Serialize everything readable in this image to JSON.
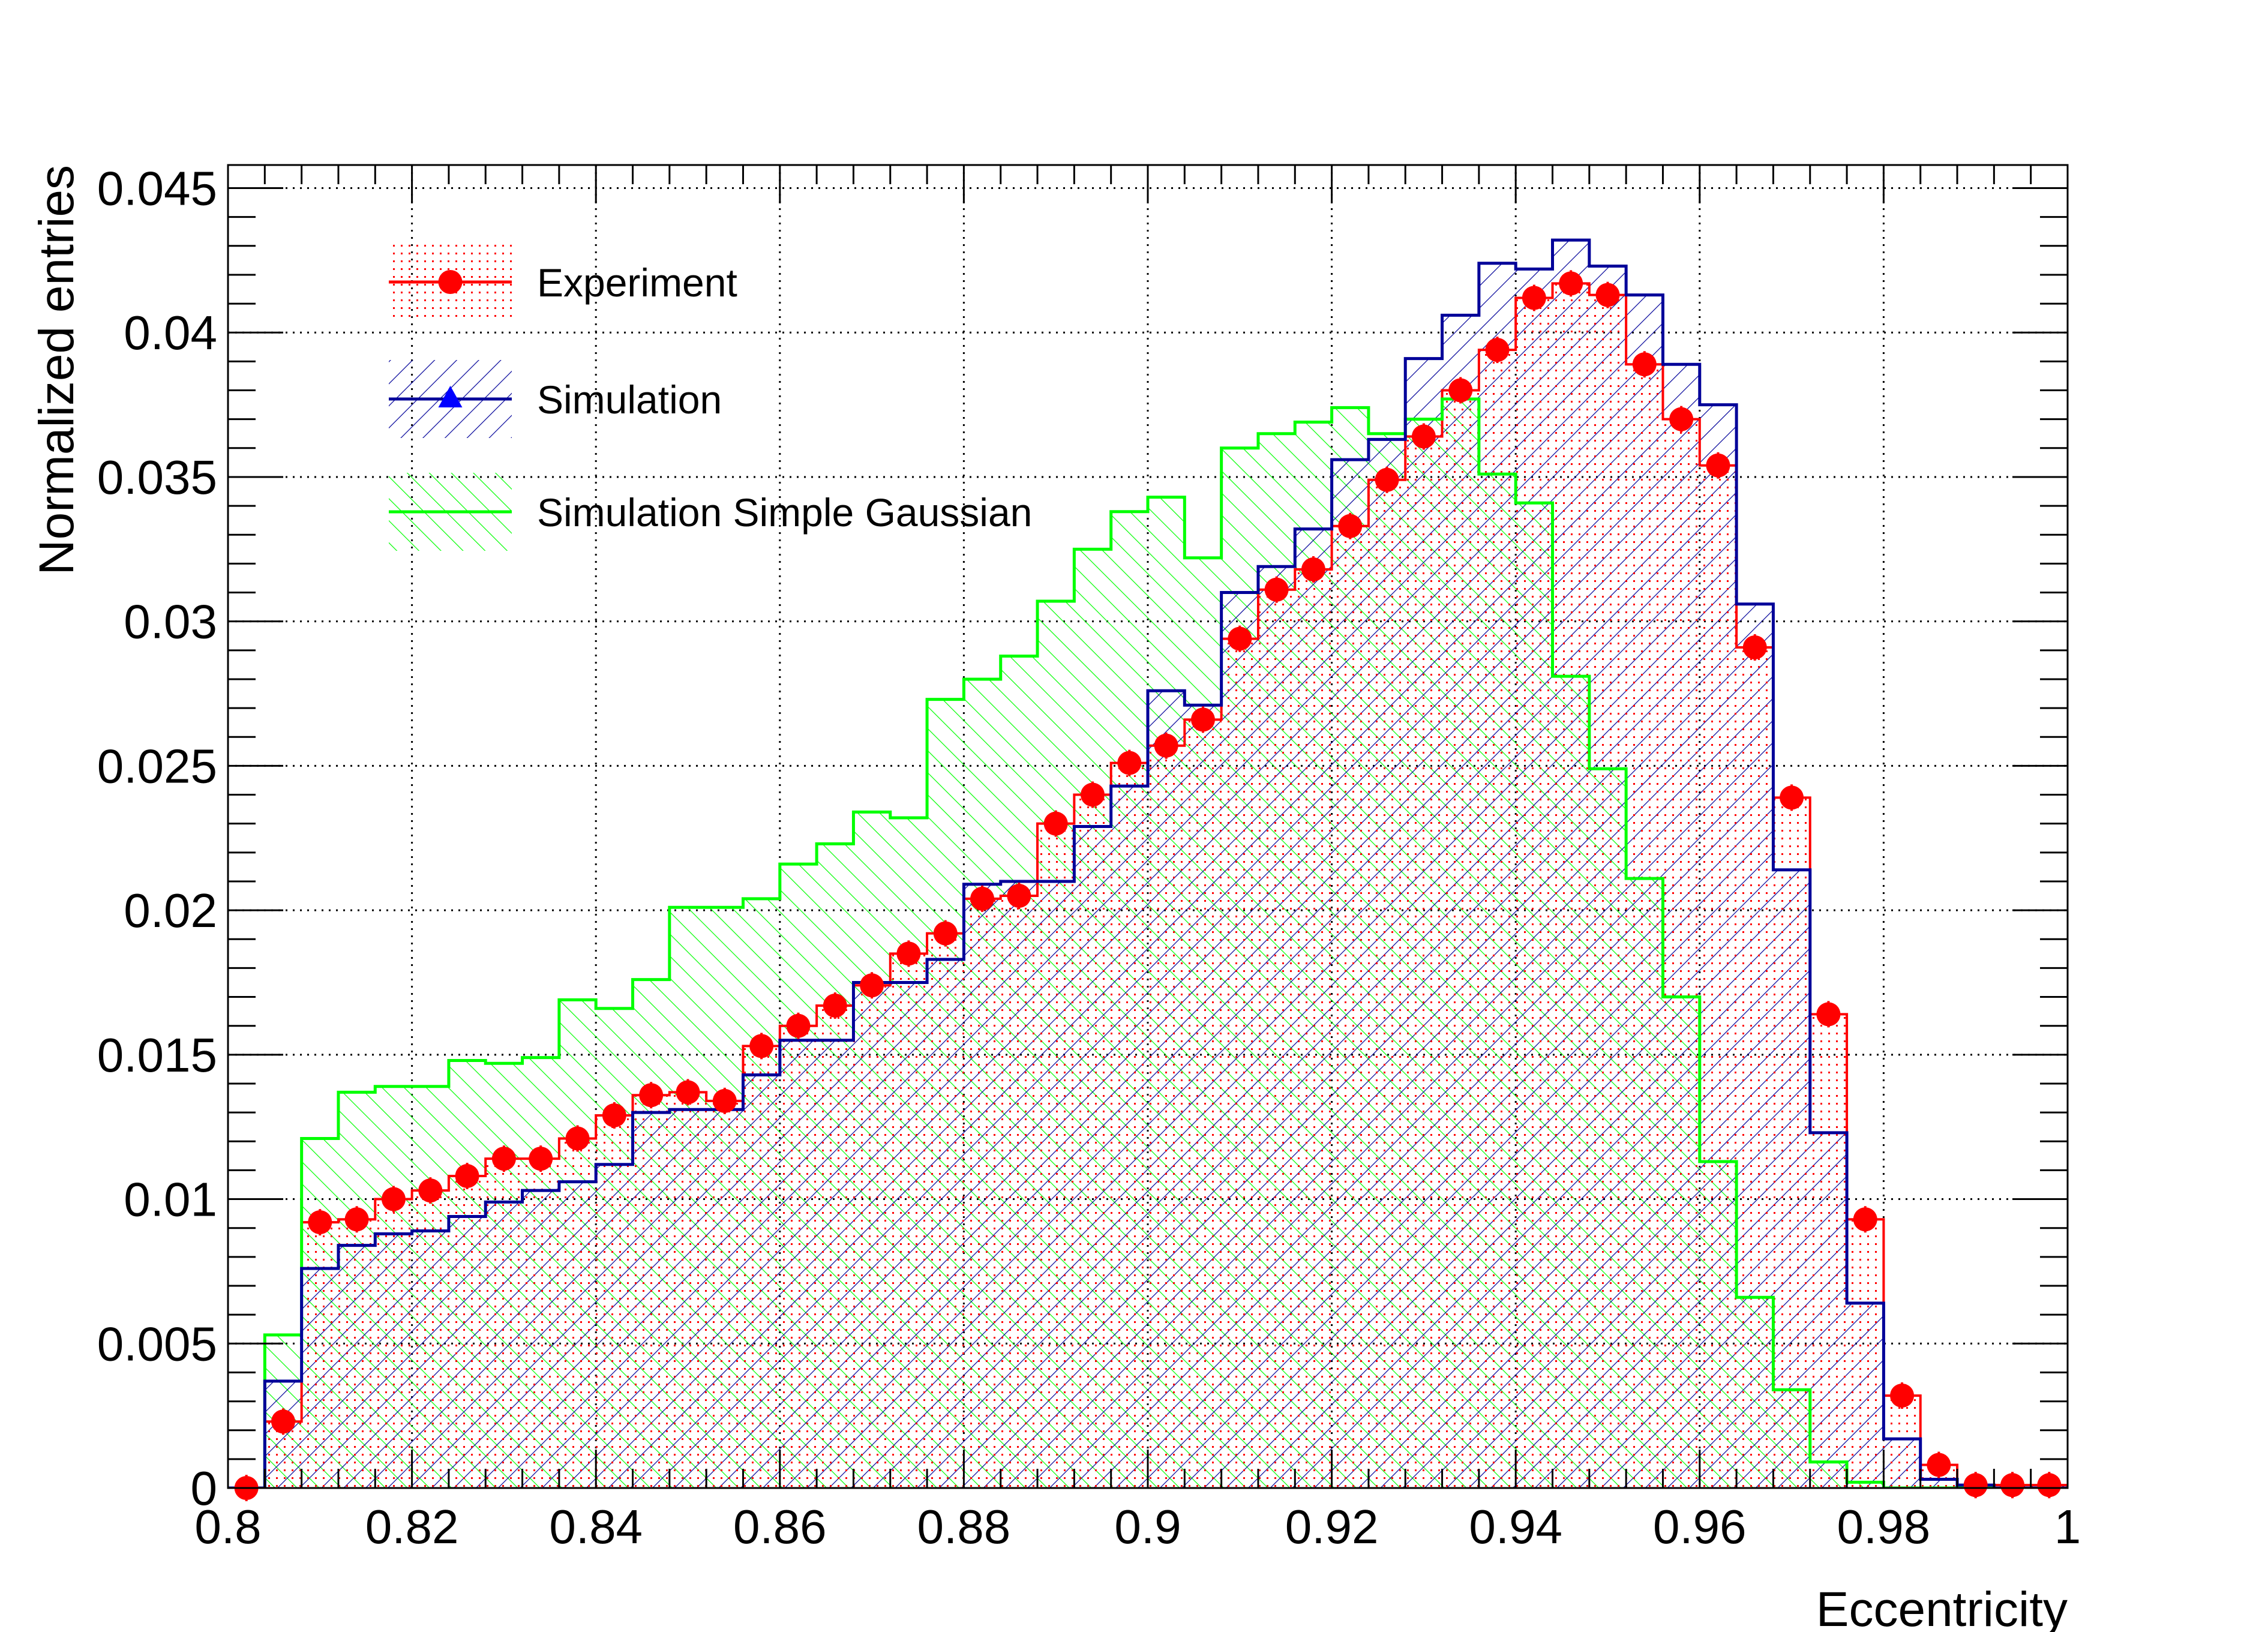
{
  "colors": {
    "experiment": "#ff0000",
    "simulation": "#000099",
    "simulation_marker": "#0000ff",
    "gaussian": "#00ff00",
    "grid": "#000000",
    "background": "#ffffff"
  },
  "chart_data": {
    "type": "histogram",
    "xlabel": "Eccentricity",
    "ylabel": "Normalized entries",
    "xlim": [
      0.8,
      1.0
    ],
    "ylim": [
      0,
      0.0458
    ],
    "grid": true,
    "legend_position": "top-left",
    "x_ticks": [
      {
        "value": 0.8,
        "label": "0.8"
      },
      {
        "value": 0.82,
        "label": "0.82"
      },
      {
        "value": 0.84,
        "label": "0.84"
      },
      {
        "value": 0.86,
        "label": "0.86"
      },
      {
        "value": 0.88,
        "label": "0.88"
      },
      {
        "value": 0.9,
        "label": "0.9"
      },
      {
        "value": 0.92,
        "label": "0.92"
      },
      {
        "value": 0.94,
        "label": "0.94"
      },
      {
        "value": 0.96,
        "label": "0.96"
      },
      {
        "value": 0.98,
        "label": "0.98"
      },
      {
        "value": 1.0,
        "label": "1"
      }
    ],
    "y_ticks": [
      {
        "value": 0,
        "label": "0"
      },
      {
        "value": 0.005,
        "label": "0.005"
      },
      {
        "value": 0.01,
        "label": "0.01"
      },
      {
        "value": 0.015,
        "label": "0.015"
      },
      {
        "value": 0.02,
        "label": "0.02"
      },
      {
        "value": 0.025,
        "label": "0.025"
      },
      {
        "value": 0.03,
        "label": "0.03"
      },
      {
        "value": 0.035,
        "label": "0.035"
      },
      {
        "value": 0.04,
        "label": "0.04"
      },
      {
        "value": 0.045,
        "label": "0.045"
      }
    ],
    "bin_edges_range": [
      0.8,
      1.0
    ],
    "n_bins": 50,
    "series": [
      {
        "name": "Simulation Simple Gaussian",
        "style": "step-hatched",
        "values": [
          0,
          0.0053,
          0.0121,
          0.0137,
          0.0139,
          0.0139,
          0.0148,
          0.0147,
          0.0149,
          0.0169,
          0.0166,
          0.0176,
          0.0201,
          0.0201,
          0.0204,
          0.0216,
          0.0223,
          0.0234,
          0.0232,
          0.0273,
          0.028,
          0.0288,
          0.0307,
          0.0325,
          0.0338,
          0.0343,
          0.0322,
          0.036,
          0.0365,
          0.0369,
          0.0374,
          0.0365,
          0.037,
          0.0377,
          0.0351,
          0.0341,
          0.0281,
          0.0249,
          0.0211,
          0.017,
          0.0113,
          0.0066,
          0.0034,
          0.0009,
          0.0002,
          0,
          0,
          0,
          0,
          0
        ]
      },
      {
        "name": "Simulation",
        "style": "step-hatched",
        "values": [
          0,
          0.0037,
          0.0076,
          0.0084,
          0.0088,
          0.0089,
          0.0094,
          0.0099,
          0.0103,
          0.0106,
          0.0112,
          0.013,
          0.0131,
          0.0131,
          0.0143,
          0.0155,
          0.0155,
          0.0175,
          0.0175,
          0.0183,
          0.0209,
          0.021,
          0.021,
          0.0229,
          0.0243,
          0.0276,
          0.0271,
          0.031,
          0.0319,
          0.0332,
          0.0356,
          0.0363,
          0.0391,
          0.0406,
          0.0424,
          0.0422,
          0.0432,
          0.0423,
          0.0413,
          0.0389,
          0.0375,
          0.0306,
          0.0214,
          0.0123,
          0.0064,
          0.0017,
          0.0003,
          0.0001,
          0,
          0
        ]
      },
      {
        "name": "Experiment",
        "style": "markers",
        "values": [
          0,
          0.0023,
          0.0092,
          0.0093,
          0.01,
          0.0103,
          0.0108,
          0.0114,
          0.0114,
          0.0121,
          0.0129,
          0.0136,
          0.0137,
          0.0134,
          0.0153,
          0.016,
          0.0167,
          0.0174,
          0.0185,
          0.0192,
          0.0204,
          0.0205,
          0.023,
          0.024,
          0.0251,
          0.0257,
          0.0266,
          0.0294,
          0.0311,
          0.0318,
          0.0333,
          0.0349,
          0.0364,
          0.038,
          0.0394,
          0.0412,
          0.0417,
          0.0413,
          0.0389,
          0.037,
          0.0354,
          0.0291,
          0.0239,
          0.0164,
          0.0093,
          0.0032,
          0.0008,
          0.0001,
          0.0001,
          0.0001
        ]
      }
    ],
    "legend": [
      {
        "name": "Experiment"
      },
      {
        "name": "Simulation"
      },
      {
        "name": "Simulation Simple Gaussian"
      }
    ]
  }
}
